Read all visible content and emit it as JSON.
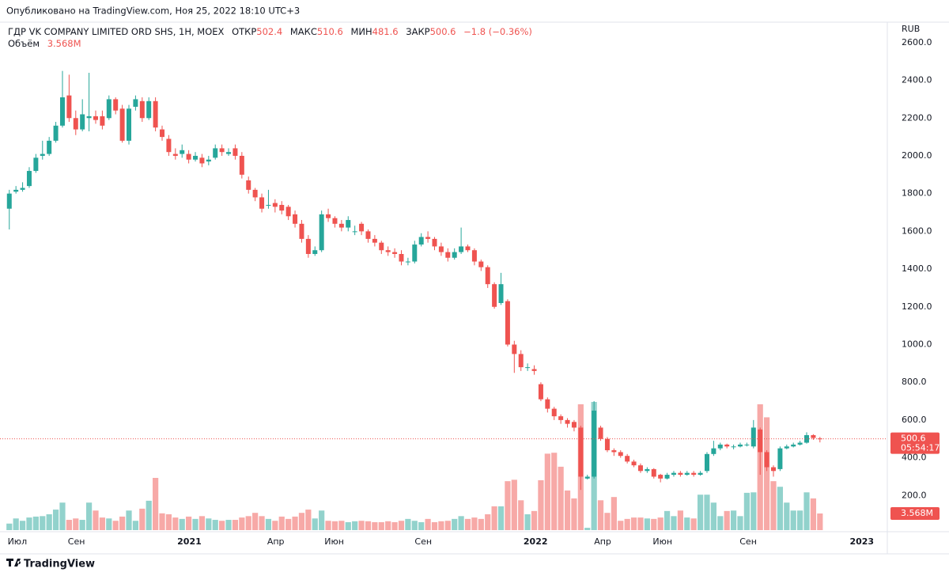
{
  "header": {
    "published": "Опубликовано на TradingView.com, Ноя 25, 2022 18:10 UTC+3"
  },
  "footer": {
    "brand": "TradingView"
  },
  "chart_data": {
    "type": "candlestick",
    "title": "ГДР VK COMPANY LIMITED ORD SHS, 1Н, MOEX",
    "currency": "RUB",
    "legend_labels": {
      "open": "ОТКР",
      "high": "МАКС",
      "low": "МИН",
      "close": "ЗАКР"
    },
    "change_label": "−1.8 (−0.36%)",
    "countdown": "05:54:17",
    "up_color": "#26a69a",
    "down_color": "#ef5350",
    "grid": false,
    "xlim": [
      -1.4,
      131.9
    ],
    "xticks": [
      {
        "value": 1.2,
        "label": "Июл"
      },
      {
        "value": 10.1,
        "label": "Сен"
      },
      {
        "value": 27.1,
        "label": "2021"
      },
      {
        "value": 40.1,
        "label": "Апр"
      },
      {
        "value": 48.9,
        "label": "Июн"
      },
      {
        "value": 62.3,
        "label": "Сен"
      },
      {
        "value": 79.2,
        "label": "2022"
      },
      {
        "value": 89.3,
        "label": "Апр"
      },
      {
        "value": 98.3,
        "label": "Июн"
      },
      {
        "value": 111.2,
        "label": "Сен"
      },
      {
        "value": 128.3,
        "label": "2023"
      }
    ],
    "ylim": [
      0,
      2700
    ],
    "yticks": [
      {
        "value": 200,
        "label": "200.0"
      },
      {
        "value": 400,
        "label": "400.0"
      },
      {
        "value": 600,
        "label": "600.0"
      },
      {
        "value": 800,
        "label": "800.0"
      },
      {
        "value": 1000,
        "label": "1000.0"
      },
      {
        "value": 1200,
        "label": "1200.0"
      },
      {
        "value": 1400,
        "label": "1400.0"
      },
      {
        "value": 1600,
        "label": "1600.0"
      },
      {
        "value": 1800,
        "label": "1800.0"
      },
      {
        "value": 2000,
        "label": "2000.0"
      },
      {
        "value": 2200,
        "label": "2200.0"
      },
      {
        "value": 2400,
        "label": "2400.0"
      },
      {
        "value": 2600,
        "label": "2600.0"
      }
    ],
    "open": [
      1720,
      1810,
      1820,
      1840,
      1920,
      2000,
      2010,
      2080,
      2160,
      2320,
      2200,
      2140,
      2200,
      2210,
      2210,
      2200,
      2300,
      2250,
      2080,
      2260,
      2290,
      2200,
      2290,
      2140,
      2090,
      2010,
      2010,
      2010,
      1980,
      1990,
      1970,
      1990,
      2040,
      2010,
      2040,
      2000,
      1870,
      1820,
      1780,
      1740,
      1750,
      1740,
      1730,
      1690,
      1640,
      1560,
      1480,
      1500,
      1690,
      1670,
      1640,
      1620,
      1600,
      1640,
      1600,
      1560,
      1540,
      1500,
      1490,
      1480,
      1440,
      1440,
      1530,
      1570,
      1560,
      1520,
      1490,
      1460,
      1490,
      1520,
      1500,
      1440,
      1410,
      1320,
      1220,
      1230,
      1000,
      950,
      880,
      870,
      790,
      710,
      660,
      620,
      600,
      590,
      560,
      290,
      300,
      560,
      500,
      440,
      430,
      410,
      380,
      360,
      330,
      340,
      310,
      290,
      310,
      320,
      310,
      320,
      310,
      330,
      420,
      450,
      470,
      460,
      460,
      470,
      460,
      550,
      430,
      350,
      340,
      450,
      460,
      470,
      480,
      520,
      502.4
    ],
    "high": [
      1820,
      1840,
      1860,
      1940,
      2010,
      2080,
      2100,
      2180,
      2450,
      2430,
      2240,
      2300,
      2440,
      2240,
      2240,
      2320,
      2310,
      2270,
      2270,
      2320,
      2310,
      2310,
      2310,
      2160,
      2110,
      2040,
      2060,
      2030,
      2020,
      2010,
      2000,
      2060,
      2060,
      2040,
      2060,
      2020,
      1890,
      1830,
      1800,
      1820,
      1770,
      1760,
      1740,
      1710,
      1660,
      1580,
      1520,
      1710,
      1720,
      1680,
      1660,
      1680,
      1630,
      1650,
      1610,
      1580,
      1550,
      1520,
      1510,
      1500,
      1460,
      1550,
      1590,
      1600,
      1570,
      1540,
      1510,
      1510,
      1620,
      1530,
      1510,
      1450,
      1420,
      1330,
      1380,
      1240,
      1020,
      970,
      900,
      890,
      800,
      720,
      670,
      630,
      610,
      600,
      570,
      310,
      700,
      570,
      510,
      450,
      440,
      420,
      390,
      370,
      350,
      345,
      315,
      320,
      330,
      330,
      330,
      330,
      330,
      430,
      490,
      480,
      475,
      470,
      480,
      480,
      600,
      560,
      440,
      360,
      460,
      470,
      480,
      490,
      535,
      525,
      510.6
    ],
    "low": [
      1610,
      1800,
      1810,
      1830,
      1910,
      1980,
      2000,
      2070,
      2150,
      2180,
      2110,
      2130,
      2130,
      2170,
      2140,
      2190,
      2220,
      2070,
      2060,
      2240,
      2180,
      2190,
      2130,
      2080,
      2000,
      1980,
      1990,
      1960,
      1970,
      1940,
      1950,
      1980,
      2000,
      2000,
      1980,
      1880,
      1800,
      1760,
      1700,
      1720,
      1700,
      1690,
      1660,
      1620,
      1540,
      1460,
      1470,
      1490,
      1650,
      1620,
      1600,
      1600,
      1580,
      1580,
      1540,
      1520,
      1480,
      1470,
      1460,
      1420,
      1420,
      1430,
      1520,
      1540,
      1500,
      1470,
      1440,
      1450,
      1480,
      1490,
      1420,
      1390,
      1300,
      1190,
      1210,
      990,
      850,
      860,
      860,
      840,
      700,
      640,
      600,
      580,
      560,
      540,
      230,
      285,
      290,
      490,
      430,
      410,
      400,
      370,
      350,
      320,
      320,
      290,
      270,
      285,
      300,
      300,
      305,
      300,
      305,
      320,
      410,
      440,
      450,
      445,
      455,
      460,
      450,
      310,
      330,
      300,
      330,
      445,
      455,
      465,
      475,
      495,
      481.6
    ],
    "close": [
      1800,
      1820,
      1830,
      1920,
      1990,
      2010,
      2080,
      2160,
      2310,
      2200,
      2140,
      2220,
      2210,
      2190,
      2160,
      2300,
      2240,
      2080,
      2250,
      2300,
      2200,
      2290,
      2150,
      2100,
      2020,
      2000,
      2030,
      1980,
      2000,
      1960,
      1980,
      2040,
      2020,
      2020,
      2000,
      1900,
      1820,
      1780,
      1720,
      1740,
      1730,
      1710,
      1680,
      1640,
      1560,
      1480,
      1500,
      1690,
      1670,
      1640,
      1620,
      1660,
      1600,
      1600,
      1560,
      1540,
      1500,
      1490,
      1480,
      1440,
      1440,
      1530,
      1570,
      1560,
      1520,
      1490,
      1460,
      1490,
      1520,
      1500,
      1440,
      1410,
      1320,
      1200,
      1320,
      1000,
      950,
      880,
      880,
      860,
      710,
      660,
      620,
      600,
      580,
      560,
      300,
      300,
      650,
      500,
      440,
      430,
      410,
      380,
      360,
      330,
      340,
      300,
      290,
      310,
      320,
      310,
      320,
      310,
      320,
      420,
      450,
      470,
      460,
      460,
      470,
      470,
      560,
      430,
      350,
      330,
      450,
      460,
      470,
      480,
      520,
      505,
      500.6
    ],
    "volume": {
      "name": "Объём",
      "label": "3.568M",
      "values": [
        1.4,
        2.5,
        2.0,
        2.7,
        2.9,
        3.0,
        3.4,
        4.4,
        5.9,
        2.2,
        2.5,
        2.2,
        5.9,
        4.2,
        2.7,
        2.5,
        2.0,
        2.9,
        4.2,
        2.0,
        4.6,
        6.3,
        11.2,
        3.6,
        3.4,
        2.7,
        2.4,
        2.9,
        2.4,
        3.0,
        2.5,
        2.2,
        2.0,
        2.2,
        2.2,
        2.7,
        3.0,
        3.7,
        3.0,
        2.4,
        2.0,
        2.9,
        2.4,
        2.9,
        3.7,
        4.4,
        2.5,
        4.2,
        2.0,
        1.9,
        2.0,
        1.7,
        1.9,
        2.0,
        1.9,
        1.7,
        1.7,
        1.9,
        1.7,
        2.0,
        2.4,
        2.0,
        1.7,
        2.4,
        1.7,
        1.9,
        2.0,
        2.4,
        3.0,
        2.4,
        2.7,
        2.4,
        3.4,
        5.1,
        5.1,
        10.5,
        10.8,
        6.4,
        3.4,
        4.1,
        10.7,
        16.4,
        16.6,
        13.6,
        8.5,
        6.8,
        27.0,
        0.5,
        27.5,
        6.4,
        3.7,
        7.1,
        2.0,
        2.4,
        2.7,
        2.7,
        2.5,
        2.4,
        2.7,
        4.1,
        3.0,
        4.2,
        2.7,
        2.5,
        7.6,
        7.6,
        5.9,
        3.0,
        4.1,
        4.2,
        3.0,
        8.0,
        8.1,
        27.0,
        24.2,
        10.5,
        9.3,
        5.9,
        4.2,
        4.2,
        8.1,
        6.8,
        3.568
      ]
    }
  }
}
